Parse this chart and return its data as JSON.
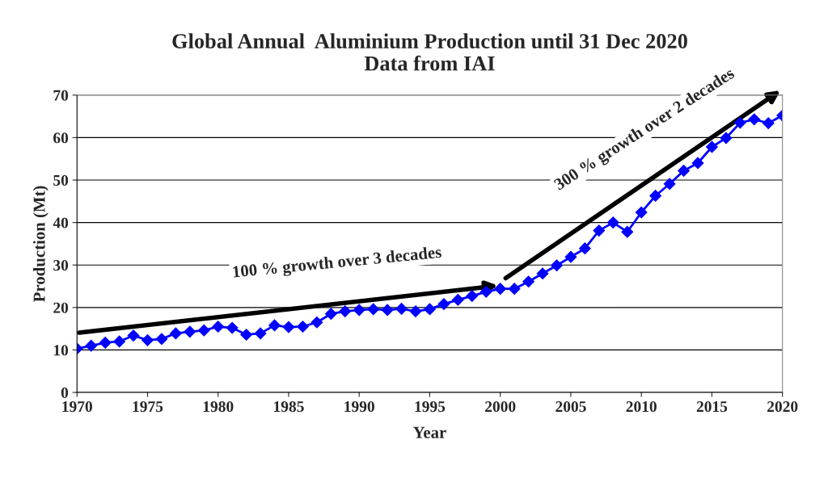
{
  "chart_data": {
    "type": "line",
    "title": "Global Annual  Aluminium Production until 31 Dec 2020\nData from IAI",
    "xlabel": "Year",
    "ylabel": "Production (Mt)",
    "x": [
      1970,
      1971,
      1972,
      1973,
      1974,
      1975,
      1976,
      1977,
      1978,
      1979,
      1980,
      1981,
      1982,
      1983,
      1984,
      1985,
      1986,
      1987,
      1988,
      1989,
      1990,
      1991,
      1992,
      1993,
      1994,
      1995,
      1996,
      1997,
      1998,
      1999,
      2000,
      2001,
      2002,
      2003,
      2004,
      2005,
      2006,
      2007,
      2008,
      2009,
      2010,
      2011,
      2012,
      2013,
      2014,
      2015,
      2016,
      2017,
      2018,
      2019,
      2020
    ],
    "series": [
      {
        "color": "#0000ff",
        "values": [
          10.3,
          11,
          11.7,
          12,
          13.4,
          12.3,
          12.6,
          13.9,
          14.3,
          14.6,
          15.5,
          15.2,
          13.6,
          13.9,
          15.8,
          15.4,
          15.5,
          16.5,
          18.5,
          19.1,
          19.4,
          19.6,
          19.4,
          19.7,
          19.1,
          19.6,
          20.8,
          21.8,
          22.7,
          23.7,
          24.4,
          24.4,
          26.1,
          28,
          29.9,
          31.9,
          33.9,
          38.1,
          40,
          37.8,
          42.4,
          46.3,
          49.1,
          52.2,
          54,
          57.8,
          59.9,
          63.5,
          64.3,
          63.4,
          65.2
        ]
      }
    ],
    "xlim": [
      1970,
      2020
    ],
    "xticks": [
      1970,
      1975,
      1980,
      1985,
      1990,
      1995,
      2000,
      2005,
      2010,
      2015,
      2020
    ],
    "ylim": [
      0,
      70
    ],
    "yticks": [
      0,
      10,
      20,
      30,
      40,
      50,
      60,
      70
    ],
    "grid": "y",
    "marker": "diamond",
    "line_style": "solid",
    "legend": false,
    "annotations": [
      "100 % growth over 3 decades",
      "300 % growth over 2 decades"
    ]
  }
}
